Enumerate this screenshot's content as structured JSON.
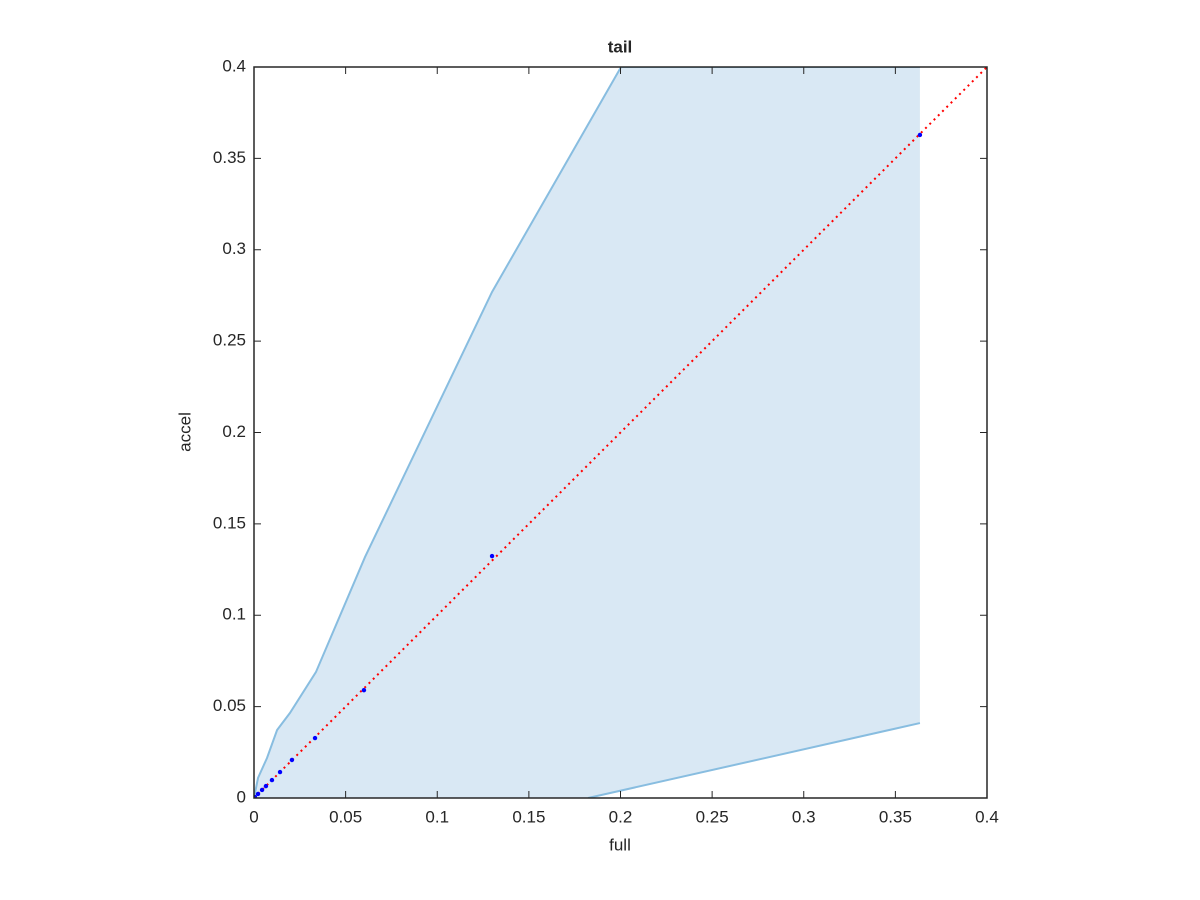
{
  "chart_data": {
    "type": "scatter",
    "title": "tail",
    "x_label": "full",
    "y_label": "accel",
    "xlim": [
      0,
      0.4
    ],
    "ylim": [
      0,
      0.4
    ],
    "xticks": [
      0,
      0.05,
      0.1,
      0.15,
      0.2,
      0.25,
      0.3,
      0.35,
      0.4
    ],
    "yticks": [
      0,
      0.05,
      0.1,
      0.15,
      0.2,
      0.25,
      0.3,
      0.35,
      0.4
    ],
    "grid": false,
    "band": {
      "fill_color": "#d9e8f4",
      "edge_color": "#88bde0",
      "upper": {
        "x": [
          0,
          0.0022,
          0.0071,
          0.0126,
          0.0196,
          0.0338,
          0.0606,
          0.1299,
          0.2003,
          0.3634
        ],
        "y": [
          0,
          0.011,
          0.0219,
          0.0372,
          0.0465,
          0.0689,
          0.1319,
          0.2769,
          0.4,
          0.4
        ]
      },
      "lower": {
        "x": [
          0.3634,
          0.1823
        ],
        "y": [
          0.041,
          0
        ]
      }
    },
    "reference": {
      "color": "#ff0000",
      "x": [
        0,
        0.4
      ],
      "y": [
        0,
        0.4
      ]
    },
    "points": {
      "color": "#0000ff",
      "x": [
        0.0005,
        0.0022,
        0.0044,
        0.0065,
        0.0098,
        0.0142,
        0.0207,
        0.0333,
        0.06,
        0.1299,
        0.3634
      ],
      "y": [
        0.0005,
        0.0022,
        0.0044,
        0.0065,
        0.0098,
        0.0142,
        0.0208,
        0.0328,
        0.059,
        0.1324,
        0.3628
      ]
    }
  }
}
